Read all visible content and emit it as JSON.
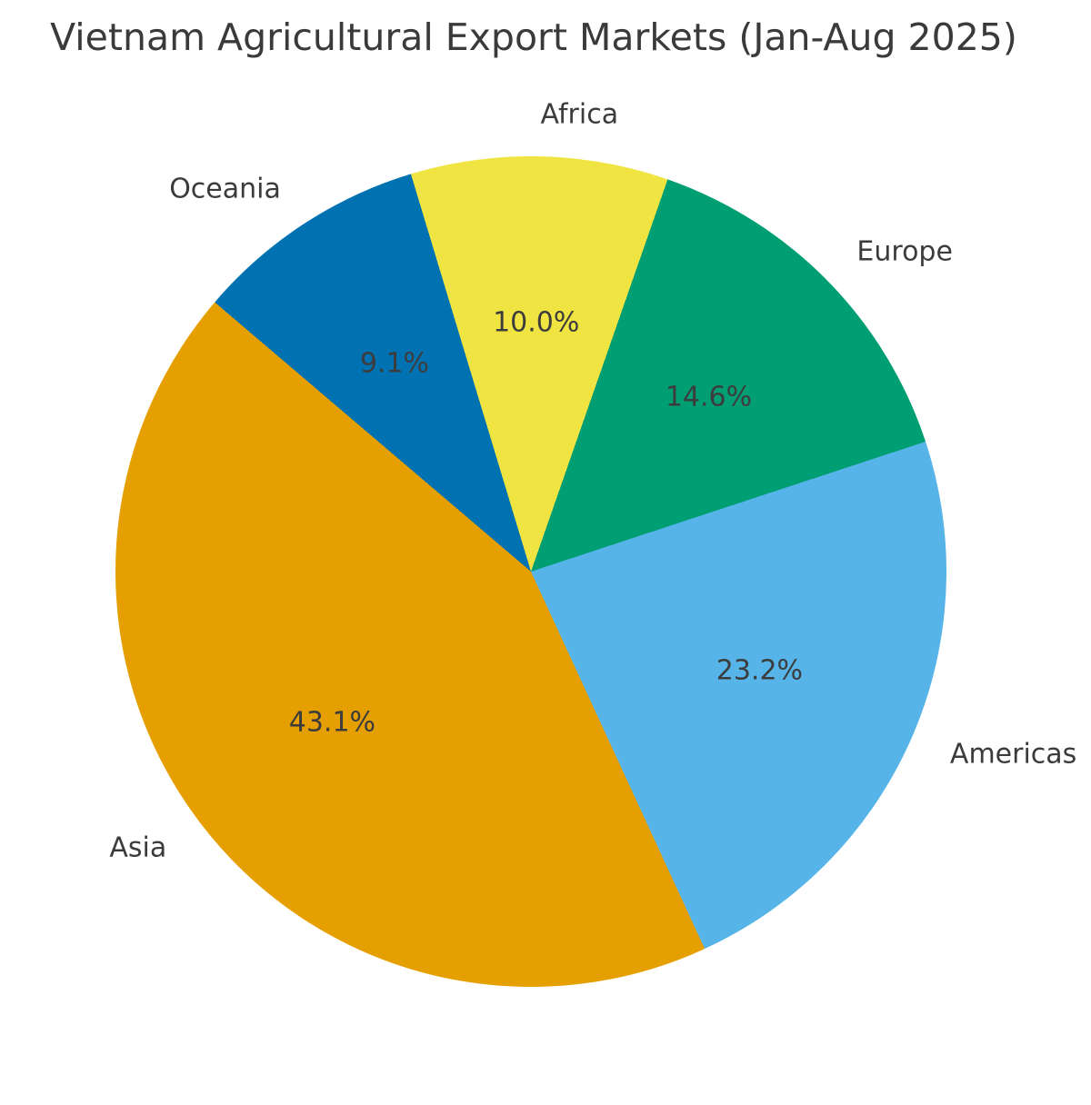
{
  "chart_data": {
    "type": "pie",
    "title": "Vietnam Agricultural Export Markets (Jan-Aug 2025)",
    "unit": "%",
    "slices": [
      {
        "label": "Africa",
        "value": 10.0,
        "pct_label": "10.0%",
        "color": "#F0E442"
      },
      {
        "label": "Europe",
        "value": 14.6,
        "pct_label": "14.6%",
        "color": "#009E73"
      },
      {
        "label": "Americas",
        "value": 23.2,
        "pct_label": "23.2%",
        "color": "#56B4E9"
      },
      {
        "label": "Asia",
        "value": 43.1,
        "pct_label": "43.1%",
        "color": "#E69F00"
      },
      {
        "label": "Oceania",
        "value": 9.1,
        "pct_label": "9.1%",
        "color": "#0072B2"
      }
    ],
    "direction": "clockwise",
    "start_angle_deg_from_top": -16.8,
    "label_distance": 1.1,
    "pct_distance": 0.6,
    "legend": "none",
    "grid": "off",
    "text_color": "#3b3b3b"
  }
}
